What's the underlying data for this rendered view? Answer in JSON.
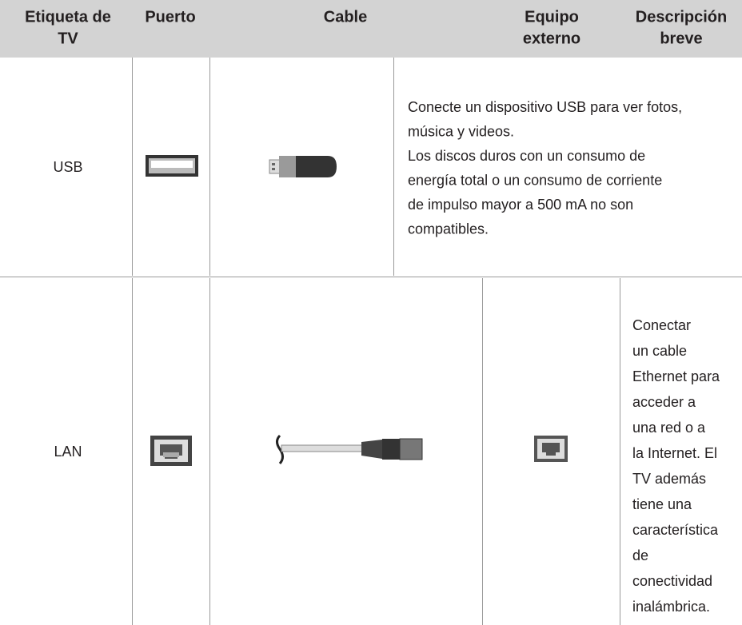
{
  "table": {
    "header": [
      [
        "Etiqueta de",
        "TV"
      ],
      [
        "Puerto"
      ],
      [
        "Cable"
      ],
      [
        "Equipo",
        "externo"
      ],
      [
        "Descripción",
        "breve"
      ]
    ],
    "rows": [
      {
        "label": "USB",
        "description": [
          "Conecte un dispositivo USB para ver fotos,",
          "música y videos.",
          "Los discos duros con un consumo de",
          "energía total o un consumo de corriente",
          "de impulso mayor a 500 mA no son",
          "compatibles."
        ]
      },
      {
        "label": "LAN",
        "description": [
          "Conectar",
          "un cable",
          "Ethernet para",
          "acceder a",
          "una red o a",
          "la Internet. El",
          "TV además",
          "tiene una",
          "característica",
          "de",
          "conectividad",
          "inalámbrica."
        ]
      }
    ]
  }
}
